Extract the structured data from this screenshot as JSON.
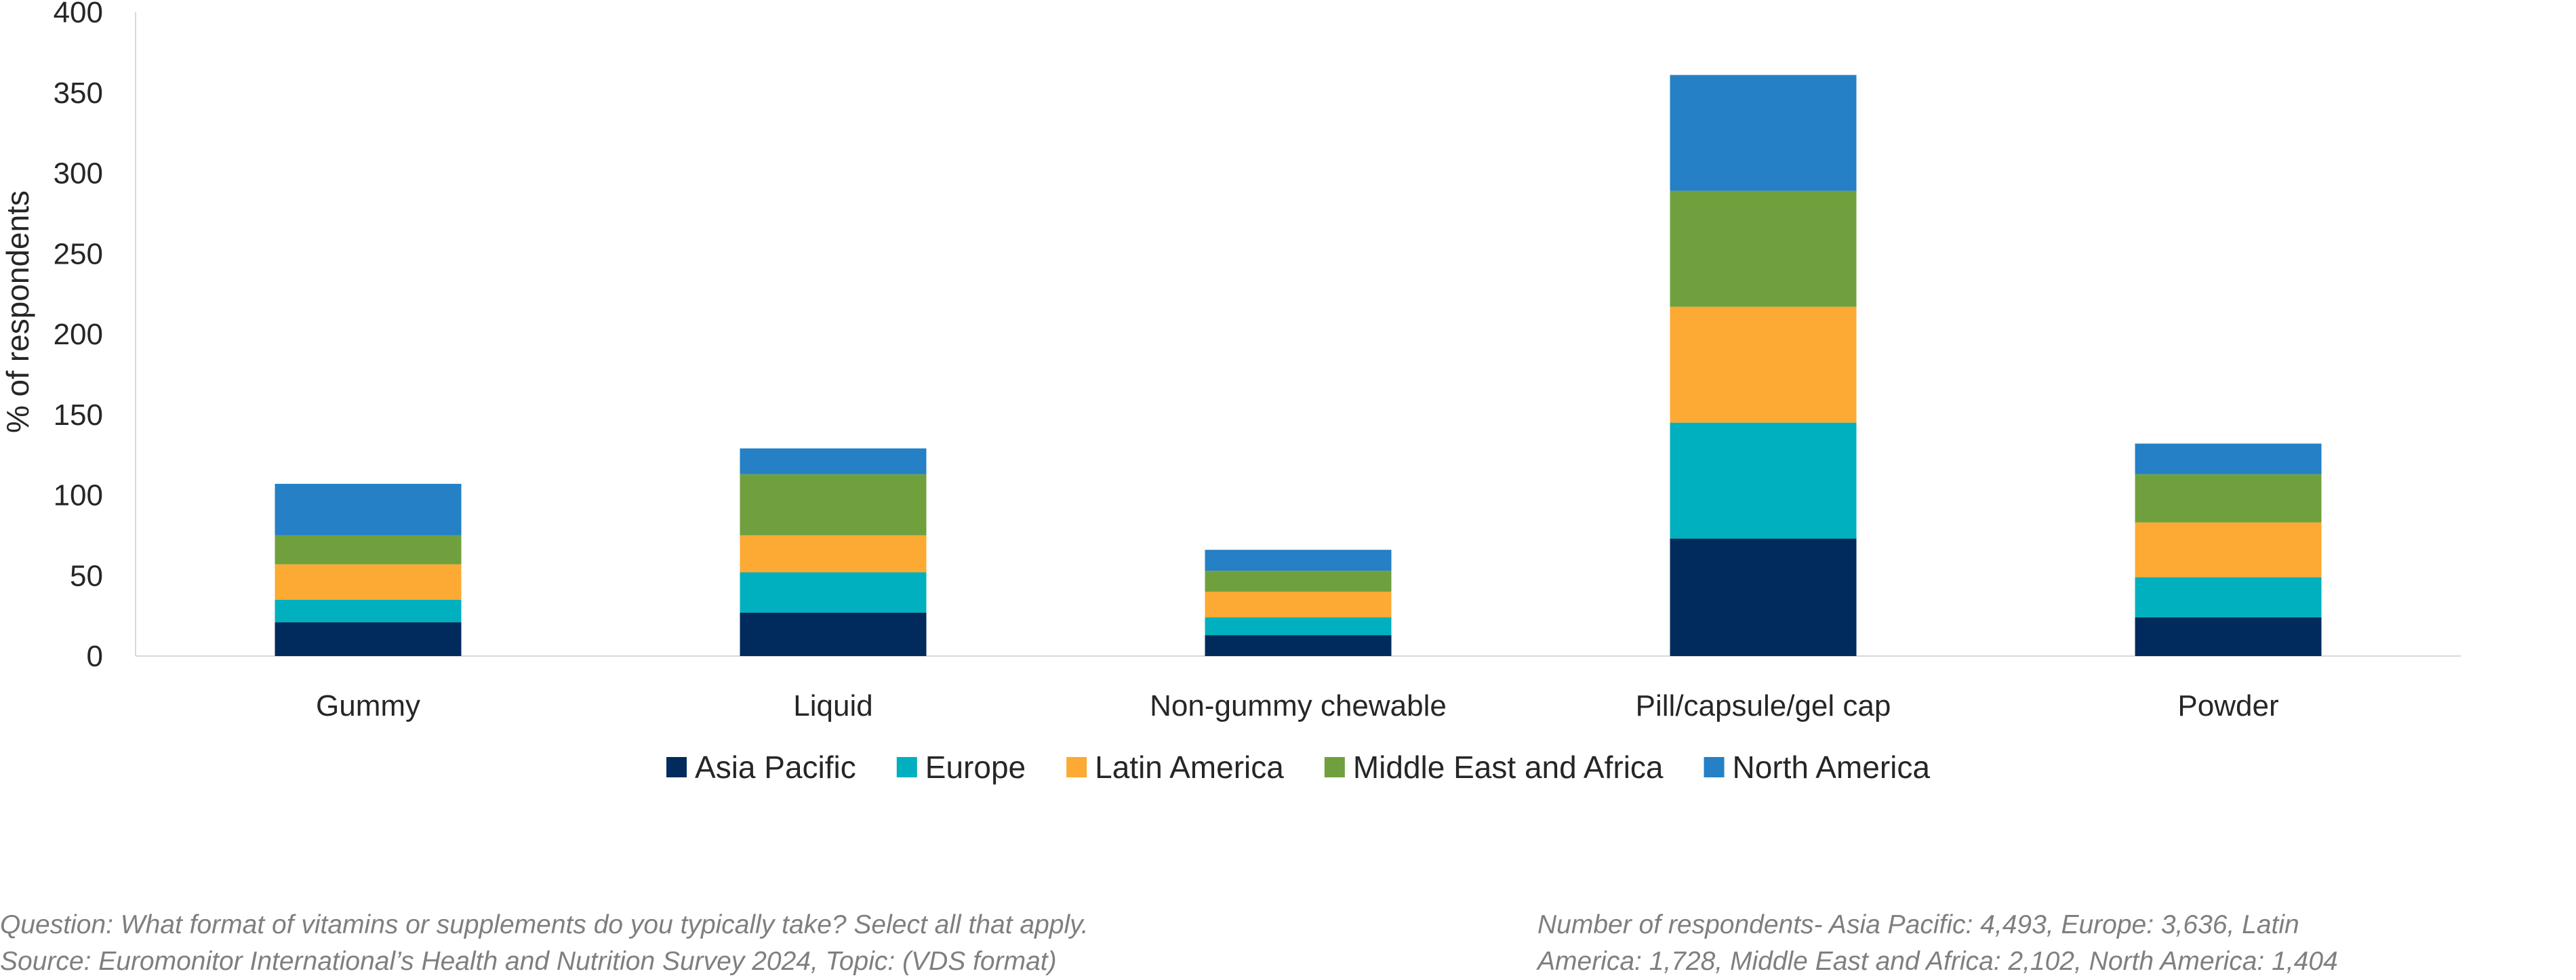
{
  "chart_data": {
    "type": "bar",
    "stacked": true,
    "categories": [
      "Gummy",
      "Liquid",
      "Non-gummy chewable",
      "Pill/capsule/gel cap",
      "Powder"
    ],
    "series": [
      {
        "name": "Asia Pacific",
        "color": "#002b5c",
        "values": [
          21,
          27,
          13,
          73,
          24
        ]
      },
      {
        "name": "Europe",
        "color": "#00b0be",
        "values": [
          14,
          25,
          11,
          72,
          25
        ]
      },
      {
        "name": "Latin America",
        "color": "#fcaa33",
        "values": [
          22,
          23,
          16,
          72,
          34
        ]
      },
      {
        "name": "Middle East and Africa",
        "color": "#70a03e",
        "values": [
          18,
          38,
          13,
          72,
          30
        ]
      },
      {
        "name": "North America",
        "color": "#2580c6",
        "values": [
          32,
          16,
          13,
          72,
          19
        ]
      }
    ],
    "ylabel": "% of respondents",
    "xlabel": "",
    "ylim": [
      0,
      400
    ],
    "yticks": [
      0,
      50,
      100,
      150,
      200,
      250,
      300,
      350,
      400
    ],
    "grid": false,
    "legend_position": "bottom"
  },
  "footnotes": {
    "question": "Question: What format of vitamins or supplements do you typically take? Select all that apply.",
    "source": "Source: Euromonitor International’s Health and Nutrition Survey 2024, Topic: (VDS format)",
    "respondents_line1": "Number of respondents-  Asia Pacific: 4,493, Europe: 3,636, Latin",
    "respondents_line2": "America: 1,728, Middle East and Africa: 2,102, North America: 1,404"
  }
}
